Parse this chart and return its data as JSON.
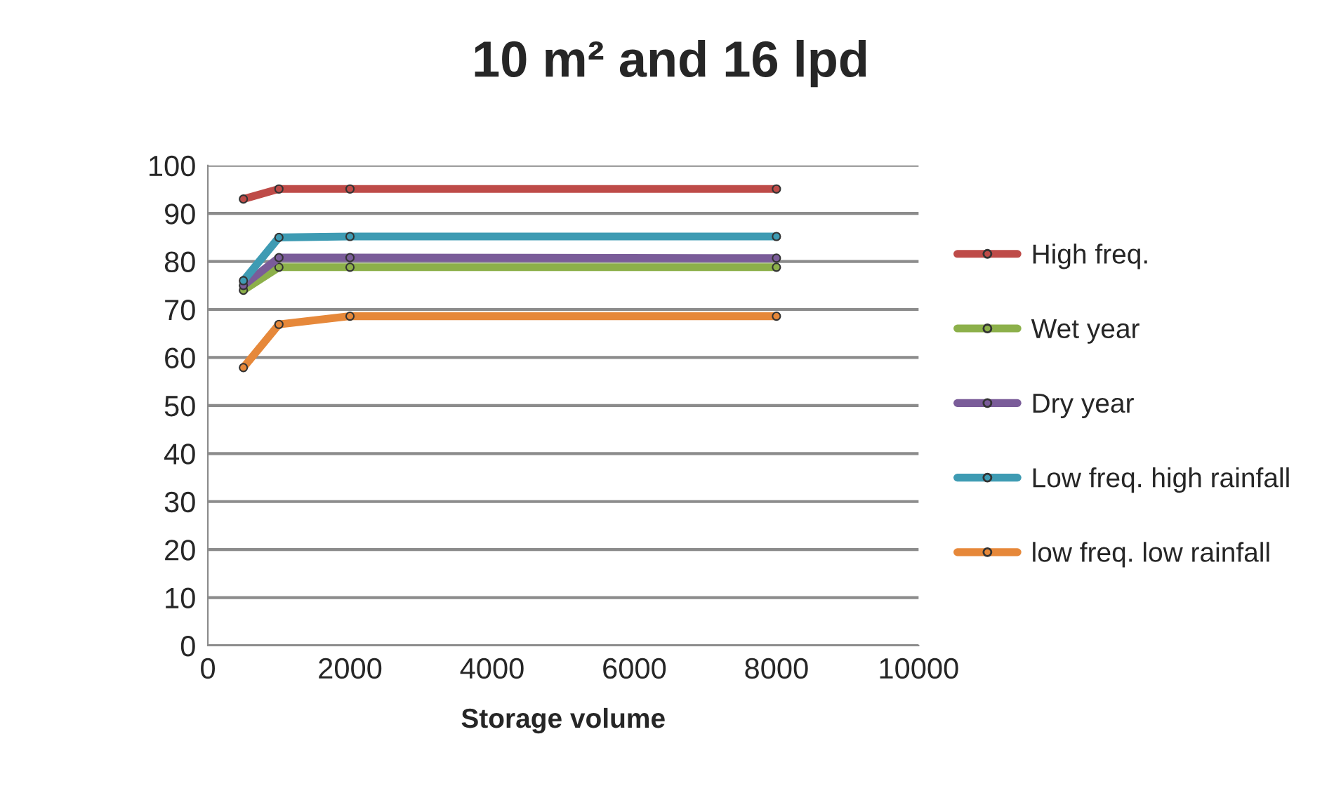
{
  "chart_data": {
    "type": "line",
    "title": "10 m² and 16 lpd",
    "xlabel": "Storage volume",
    "x": [
      500,
      1000,
      2000,
      8000
    ],
    "series": [
      {
        "name": "High freq.",
        "color": "#be4b48",
        "values": [
          93,
          95.1,
          95.1,
          95.1
        ]
      },
      {
        "name": "Wet year",
        "color": "#8cb04a",
        "values": [
          74,
          78.8,
          78.8,
          78.8
        ]
      },
      {
        "name": "Dry year",
        "color": "#7a5c99",
        "values": [
          75,
          80.8,
          80.8,
          80.7
        ]
      },
      {
        "name": "Low freq. high rainfall",
        "color": "#3e9bb3",
        "values": [
          76,
          85,
          85.2,
          85.2
        ]
      },
      {
        "name": "low freq. low rainfall",
        "color": "#e6883a",
        "values": [
          57.9,
          66.9,
          68.6,
          68.6
        ]
      }
    ],
    "xlim": [
      0,
      10000
    ],
    "xticks": [
      0,
      2000,
      4000,
      6000,
      8000,
      10000
    ],
    "ylim": [
      0,
      100
    ],
    "yticks": [
      0,
      10,
      20,
      30,
      40,
      50,
      60,
      70,
      80,
      90,
      100
    ],
    "grid": "y",
    "legend": "right",
    "marker": "circle",
    "line_style": "solid"
  }
}
